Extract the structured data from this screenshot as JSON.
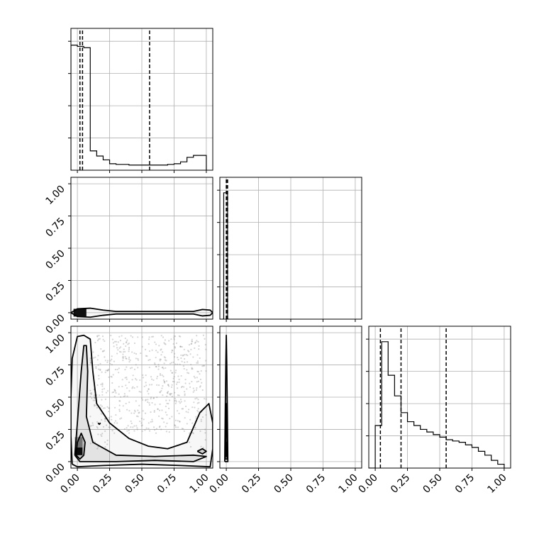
{
  "chart_data": {
    "type": "corner",
    "tick_labels": [
      "0.00",
      "0.25",
      "0.50",
      "0.75",
      "1.00"
    ],
    "grid": true,
    "range": [
      -0.05,
      1.05
    ],
    "panels": [
      {
        "id": "p0_hist",
        "type": "step",
        "xlim": [
          -0.05,
          1.05
        ],
        "ylim": [
          0,
          1.1
        ],
        "x_edges": [
          -0.05,
          0.0,
          0.05,
          0.1,
          0.15,
          0.2,
          0.25,
          0.3,
          0.35,
          0.4,
          0.45,
          0.5,
          0.55,
          0.6,
          0.65,
          0.7,
          0.75,
          0.8,
          0.85,
          0.9,
          0.95,
          1.0
        ],
        "values": [
          0.97,
          0.96,
          0.95,
          0.15,
          0.11,
          0.08,
          0.05,
          0.045,
          0.045,
          0.04,
          0.04,
          0.04,
          0.04,
          0.04,
          0.04,
          0.045,
          0.05,
          0.065,
          0.1,
          0.115,
          0.115
        ],
        "quantiles": [
          0.02,
          0.04,
          0.56
        ]
      },
      {
        "id": "p1_hist",
        "type": "step",
        "xlim": [
          -0.05,
          1.05
        ],
        "ylim": [
          0,
          1.1
        ],
        "x_edges": [
          -0.03,
          -0.02,
          -0.01,
          0.0,
          0.01,
          0.02
        ],
        "values": [
          0.0,
          0.98,
          0.98,
          0.98,
          0.0
        ],
        "quantiles": [
          0.0,
          0.005,
          0.01
        ]
      },
      {
        "id": "p2_hist",
        "type": "step",
        "xlim": [
          -0.05,
          1.05
        ],
        "ylim": [
          0,
          1.1
        ],
        "x_edges": [
          -0.05,
          0.0,
          0.05,
          0.1,
          0.15,
          0.2,
          0.25,
          0.3,
          0.35,
          0.4,
          0.45,
          0.5,
          0.55,
          0.6,
          0.65,
          0.7,
          0.75,
          0.8,
          0.85,
          0.9,
          0.95,
          1.0
        ],
        "values": [
          0.0,
          0.33,
          0.98,
          0.72,
          0.56,
          0.43,
          0.36,
          0.33,
          0.3,
          0.28,
          0.26,
          0.24,
          0.22,
          0.21,
          0.2,
          0.18,
          0.16,
          0.13,
          0.1,
          0.06,
          0.03
        ],
        "quantiles": [
          0.04,
          0.2,
          0.55
        ]
      },
      {
        "id": "p10_kde",
        "type": "contour",
        "xlim": [
          -0.05,
          1.05
        ],
        "ylim": [
          -0.05,
          1.05
        ],
        "contours": [
          [
            [
              -0.05,
              0.0
            ],
            [
              0.0,
              0.03
            ],
            [
              0.1,
              0.035
            ],
            [
              0.2,
              0.02
            ],
            [
              0.3,
              0.01
            ],
            [
              0.6,
              0.01
            ],
            [
              0.9,
              0.01
            ],
            [
              0.97,
              0.025
            ],
            [
              1.03,
              0.02
            ],
            [
              1.05,
              0.0
            ],
            [
              1.03,
              -0.02
            ],
            [
              0.97,
              -0.025
            ],
            [
              0.9,
              -0.01
            ],
            [
              0.6,
              -0.01
            ],
            [
              0.3,
              -0.01
            ],
            [
              0.2,
              -0.02
            ],
            [
              0.1,
              -0.035
            ],
            [
              0.0,
              -0.03
            ],
            [
              -0.05,
              0.0
            ]
          ]
        ],
        "density_blocks": [
          [
            -0.03,
            -0.03,
            0.1,
            0.06
          ]
        ]
      },
      {
        "id": "p20_kde",
        "type": "contour_scatter",
        "xlim": [
          -0.05,
          1.05
        ],
        "ylim": [
          -0.05,
          1.05
        ],
        "contours": [
          [
            [
              -0.04,
              -0.02
            ],
            [
              0.0,
              -0.04
            ],
            [
              0.2,
              -0.03
            ],
            [
              0.5,
              -0.02
            ],
            [
              0.8,
              -0.03
            ],
            [
              1.03,
              -0.04
            ],
            [
              1.05,
              0.1
            ],
            [
              1.05,
              0.3
            ],
            [
              1.02,
              0.45
            ],
            [
              0.95,
              0.38
            ],
            [
              0.85,
              0.15
            ],
            [
              0.7,
              0.1
            ],
            [
              0.55,
              0.12
            ],
            [
              0.4,
              0.18
            ],
            [
              0.25,
              0.3
            ],
            [
              0.15,
              0.45
            ],
            [
              0.12,
              0.7
            ],
            [
              0.1,
              0.95
            ],
            [
              0.05,
              0.98
            ],
            [
              0.0,
              0.97
            ],
            [
              -0.04,
              0.8
            ],
            [
              -0.05,
              0.5
            ],
            [
              -0.05,
              0.2
            ],
            [
              -0.04,
              -0.02
            ]
          ],
          [
            [
              -0.02,
              0.05
            ],
            [
              0.0,
              0.3
            ],
            [
              0.03,
              0.7
            ],
            [
              0.05,
              0.9
            ],
            [
              0.07,
              0.9
            ],
            [
              0.08,
              0.7
            ],
            [
              0.07,
              0.35
            ],
            [
              0.12,
              0.15
            ],
            [
              0.3,
              0.05
            ],
            [
              0.6,
              0.04
            ],
            [
              0.9,
              0.05
            ],
            [
              1.0,
              0.04
            ],
            [
              0.9,
              0.0
            ],
            [
              0.6,
              0.01
            ],
            [
              0.3,
              0.0
            ],
            [
              0.1,
              0.0
            ],
            [
              0.02,
              0.0
            ],
            [
              -0.02,
              0.05
            ]
          ],
          [
            [
              -0.01,
              0.05
            ],
            [
              0.0,
              0.15
            ],
            [
              0.03,
              0.22
            ],
            [
              0.06,
              0.15
            ],
            [
              0.05,
              0.05
            ],
            [
              0.02,
              0.02
            ],
            [
              -0.01,
              0.05
            ]
          ],
          [
            [
              0.93,
              0.08
            ],
            [
              0.97,
              0.1
            ],
            [
              1.0,
              0.08
            ],
            [
              0.97,
              0.06
            ],
            [
              0.93,
              0.08
            ]
          ],
          [
            [
              0.16,
              0.3
            ],
            [
              0.17,
              0.29
            ],
            [
              0.18,
              0.3
            ]
          ]
        ],
        "density_blocks": [
          [
            -0.02,
            0.05,
            0.06,
            0.06
          ],
          [
            -0.02,
            0.11,
            0.06,
            0.08
          ]
        ]
      },
      {
        "id": "p21_kde",
        "type": "contour",
        "xlim": [
          -0.05,
          1.05
        ],
        "ylim": [
          -0.05,
          1.05
        ],
        "contours": [
          [
            [
              -0.012,
              0.0
            ],
            [
              -0.008,
              0.4
            ],
            [
              -0.003,
              0.8
            ],
            [
              0.0,
              0.98
            ],
            [
              0.003,
              0.8
            ],
            [
              0.008,
              0.4
            ],
            [
              0.012,
              0.0
            ],
            [
              -0.012,
              0.0
            ]
          ],
          [
            [
              -0.008,
              0.02
            ],
            [
              -0.004,
              0.25
            ],
            [
              0.0,
              0.45
            ],
            [
              0.004,
              0.25
            ],
            [
              0.008,
              0.02
            ],
            [
              -0.008,
              0.02
            ]
          ],
          [
            [
              -0.004,
              0.04
            ],
            [
              0.0,
              0.15
            ],
            [
              0.004,
              0.04
            ],
            [
              -0.004,
              0.04
            ]
          ]
        ],
        "density_blocks": []
      }
    ]
  }
}
